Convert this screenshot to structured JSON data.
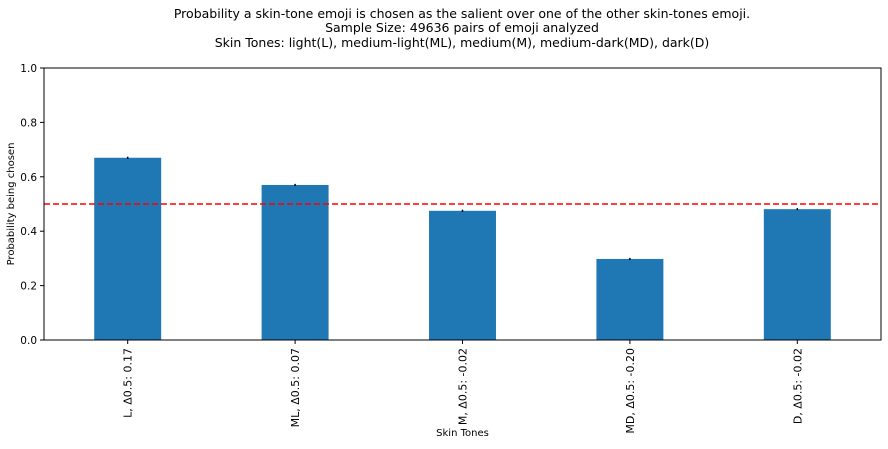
{
  "chart_data": {
    "type": "bar",
    "title_lines": [
      "Probability a skin-tone emoji is chosen as the salient over one of the other skin-tones emoji.",
      "Sample Size: 49636 pairs of emoji analyzed",
      "Skin Tones: light(L), medium-light(ML), medium(M), medium-dark(MD), dark(D)"
    ],
    "xlabel": "Skin Tones",
    "ylabel": "Probability being chosen",
    "categories": [
      "L, Δ0.5: 0.17",
      "ML, Δ0.5: 0.07",
      "M, Δ0.5: -0.02",
      "MD, Δ0.5: -0.20",
      "D, Δ0.5: -0.02"
    ],
    "values": [
      0.67,
      0.57,
      0.475,
      0.298,
      0.481
    ],
    "errors": [
      0.004,
      0.004,
      0.004,
      0.004,
      0.004
    ],
    "ylim": [
      0,
      1
    ],
    "yticks": [
      "0.0",
      "0.2",
      "0.4",
      "0.6",
      "0.8",
      "1.0"
    ],
    "reference_line": {
      "y": 0.5,
      "style": "dashed",
      "color": "#ff0000"
    },
    "bar_color": "#1f77b4",
    "grid": false,
    "legend": "none"
  }
}
